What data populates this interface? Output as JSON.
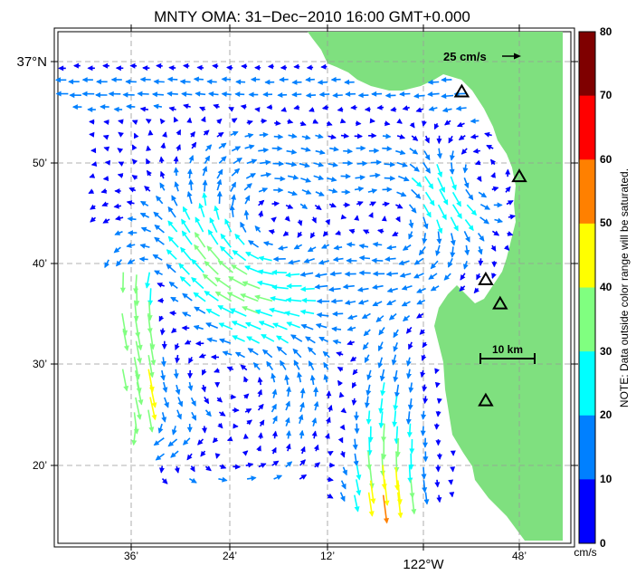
{
  "title": "MNTY OMA: 31−Dec−2010 16:00 GMT+0.000",
  "lat_labels": [
    "37°N",
    "50’",
    "40’",
    "30’",
    "20’"
  ],
  "lon_labels": [
    "36’",
    "24’",
    "12’",
    "122°W",
    "48’"
  ],
  "reference_vector_label": "25 cm/s",
  "scale_bar_label": "10 km",
  "colorbar": {
    "ticks": [
      "80",
      "70",
      "60",
      "50",
      "40",
      "30",
      "20",
      "10",
      "0"
    ],
    "unit": "cm/s",
    "note": "NOTE: Data outside color range will be saturated.",
    "colors": [
      "#7f0000",
      "#ff0000",
      "#ff8000",
      "#ffff00",
      "#80ff80",
      "#00ffff",
      "#0080ff",
      "#0000ff"
    ]
  },
  "land_color": "#7fe07f",
  "sites": [
    {
      "lon": -121.92,
      "lat": 36.95
    },
    {
      "lon": -121.8,
      "lat": 36.81
    },
    {
      "lon": -121.87,
      "lat": 36.64
    },
    {
      "lon": -121.84,
      "lat": 36.6
    },
    {
      "lon": -121.87,
      "lat": 36.44
    }
  ]
}
